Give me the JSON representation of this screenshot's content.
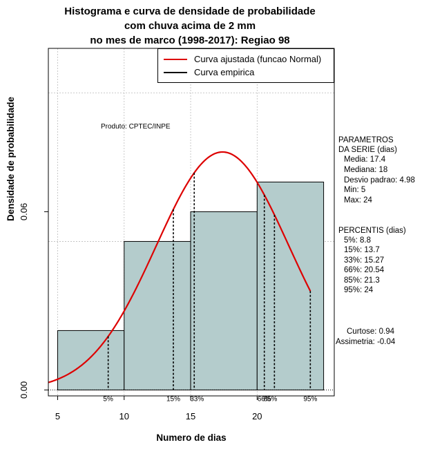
{
  "title_lines": [
    "Histograma e curva de densidade de probabilidade",
    "com chuva acima de 2 mm",
    "no mes de marco (1998-2017): Regiao 98"
  ],
  "legend": {
    "fitted": "Curva ajustada (funcao Normal)",
    "empirical": "Curva empirica"
  },
  "produto": "Produto: CPTEC/INPE",
  "params": {
    "header1": "PARAMETROS",
    "header2": "DA SERIE (dias)",
    "media": "Media: 17.4",
    "mediana": "Mediana: 18",
    "desvio": "Desvio padrao: 4.98",
    "min": "Min: 5",
    "max": "Max: 24"
  },
  "percentis": {
    "header": "PERCENTIS (dias)",
    "p5": "5%: 8.8",
    "p15": "15%: 13.7",
    "p33": "33%: 15.27",
    "p66": "66%: 20.54",
    "p85": "85%: 21.3",
    "p95": "95%: 24"
  },
  "stats": {
    "curtose": "Curtose: 0.94",
    "assimetria": "Assimetria: -0.04"
  },
  "colors": {
    "bar": "#b4cccc",
    "curve": "#dd0000",
    "grid": "#bbbbbb"
  },
  "chart_data": {
    "type": "bar",
    "title": "Histograma e curva de densidade de probabilidade com chuva acima de 2 mm no mes de marco (1998-2017): Regiao 98",
    "xlabel": "Numero de dias",
    "ylabel": "Densidade de probabilidade",
    "xlim": [
      4.3,
      25.8
    ],
    "ylim": [
      -0.002,
      0.115
    ],
    "x_ticks": [
      5,
      10,
      15,
      20
    ],
    "y_ticks": [
      0.0,
      0.06
    ],
    "y_tick_labels": [
      "0.00",
      "0.06"
    ],
    "grid_x": [
      5,
      10,
      15,
      20
    ],
    "grid_y": [
      0.05,
      0.1
    ],
    "bins": [
      {
        "from": 5,
        "to": 10,
        "density": 0.02
      },
      {
        "from": 10,
        "to": 15,
        "density": 0.05
      },
      {
        "from": 15,
        "to": 20,
        "density": 0.06
      },
      {
        "from": 20,
        "to": 25,
        "density": 0.07
      }
    ],
    "normal_fit": {
      "mean": 17.4,
      "sd": 4.98,
      "x_range": [
        4.3,
        24
      ]
    },
    "percentiles": [
      {
        "label": "5%",
        "value": 8.8
      },
      {
        "label": "15%",
        "value": 13.7
      },
      {
        "label": "33%",
        "value": 15.27
      },
      {
        "label": "66%",
        "value": 20.54
      },
      {
        "label": "85%",
        "value": 21.3
      },
      {
        "label": "95%",
        "value": 24
      }
    ]
  }
}
